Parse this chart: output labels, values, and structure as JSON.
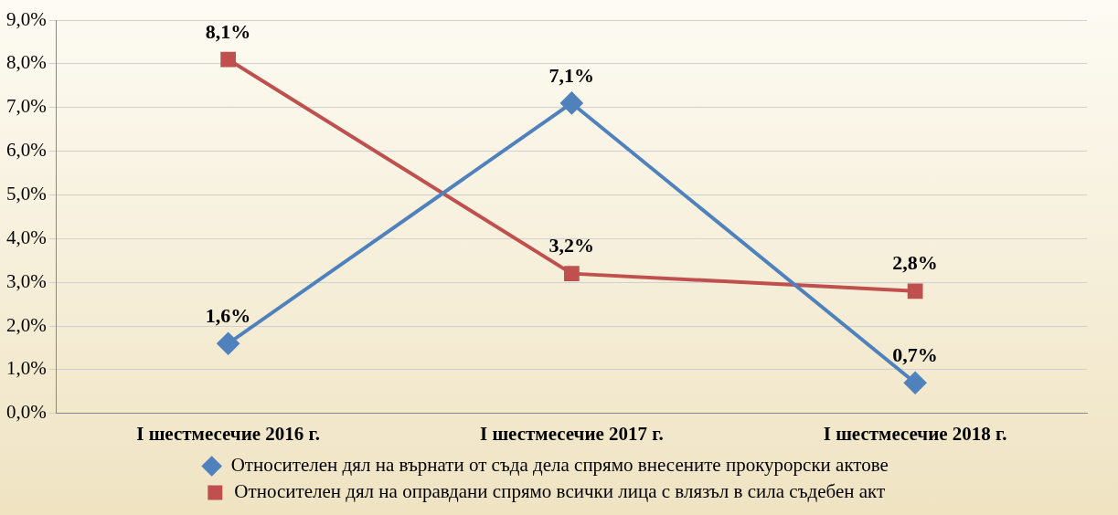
{
  "chart_data": {
    "type": "line",
    "categories": [
      "I шестмесечие 2016 г.",
      "I шестмесечие 2017 г.",
      "I шестмесечие 2018 г."
    ],
    "series": [
      {
        "name": "Относителен дял на върнати от съда дела спрямо внесените прокурорски актове",
        "color": "#4f81bd",
        "marker": "diamond",
        "values": [
          1.6,
          7.1,
          0.7
        ],
        "value_labels": [
          "1,6%",
          "7,1%",
          "0,7%"
        ]
      },
      {
        "name": "Относителен дял на оправдани спрямо всички лица с влязъл в сила съдебен акт",
        "color": "#c0504d",
        "marker": "square",
        "values": [
          8.1,
          3.2,
          2.8
        ],
        "value_labels": [
          "8,1%",
          "3,2%",
          "2,8%"
        ]
      }
    ],
    "ylim": [
      0,
      9
    ],
    "yticks": [
      {
        "value": 0,
        "label": "0,0%"
      },
      {
        "value": 1,
        "label": "1,0%"
      },
      {
        "value": 2,
        "label": "2,0%"
      },
      {
        "value": 3,
        "label": "3,0%"
      },
      {
        "value": 4,
        "label": "4,0%"
      },
      {
        "value": 5,
        "label": "5,0%"
      },
      {
        "value": 6,
        "label": "6,0%"
      },
      {
        "value": 7,
        "label": "7,0%"
      },
      {
        "value": 8,
        "label": "8,0%"
      },
      {
        "value": 9,
        "label": "9,0%"
      }
    ],
    "grid": "y",
    "legend": "bottom",
    "line_style": "solid"
  }
}
